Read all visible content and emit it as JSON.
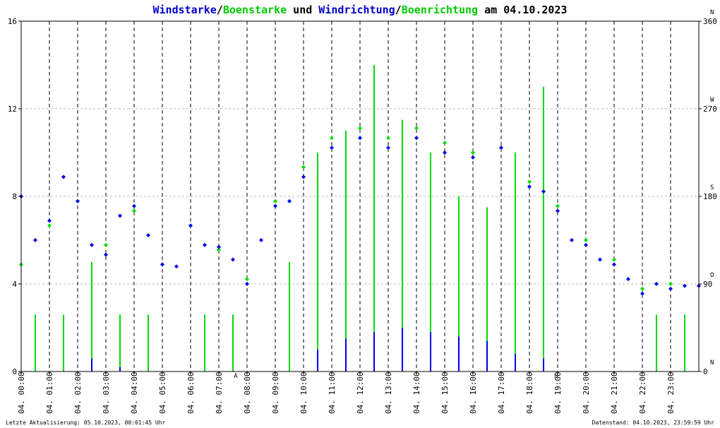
{
  "title": {
    "part1": "Windstarke",
    "sep1": "/",
    "part2": "Boenstarke",
    "mid": " und ",
    "part3": "Windrichtung",
    "sep2": "/",
    "part4": "Boenrichtung",
    "suffix": " am 04.10.2023"
  },
  "footer": {
    "left": "Letzte Aktualisierung: 05.10.2023, 00:01:45 Uhr",
    "right": "Datenstand: 04.10.2023, 23:59:59 Uhr"
  },
  "colors": {
    "wind": "#0000ee",
    "gust": "#00dd00",
    "marker": "#cc0000",
    "grid": "#bbbbbb",
    "hourline": "#000000"
  },
  "chart_data": {
    "type": "scatter",
    "x_unit": "hour of day",
    "xlim": [
      0,
      24
    ],
    "ylim_left": [
      0,
      16
    ],
    "ylim_right": [
      0,
      360
    ],
    "left_ticks": [
      "0",
      "4",
      "8",
      "12",
      "16"
    ],
    "right_ticks": [
      "0",
      "90",
      "180",
      "270",
      "360"
    ],
    "compass_labels": [
      "N",
      "O",
      "S",
      "W",
      "N"
    ],
    "x_tick_labels": [
      "04. 00:00",
      "04. 01:00",
      "04. 02:00",
      "04. 03:00",
      "04. 04:00",
      "04. 05:00",
      "04. 06:00",
      "04. 07:00",
      "04. 08:00",
      "04. 09:00",
      "04. 10:00",
      "04. 11:00",
      "04. 12:00",
      "04. 13:00",
      "04. 14:00",
      "04. 15:00",
      "04. 16:00",
      "04. 17:00",
      "04. 18:00",
      "04. 19:00",
      "04. 20:00",
      "04. 21:00",
      "04. 22:00",
      "04. 23:00"
    ],
    "sun_markers": [
      {
        "label": "A",
        "hour": 7.6
      },
      {
        "label": "U",
        "hour": 18.95
      }
    ],
    "series": [
      {
        "name": "Windstarke",
        "color": "#0000ee",
        "kind": "speed",
        "x": [
          0.0,
          1.0,
          2.0,
          3.0,
          4.0,
          5.0,
          6.0,
          7.0,
          8.0,
          9.0,
          10.0,
          11.0,
          12.0,
          13.0,
          14.0,
          15.0,
          16.0,
          17.0,
          18.0,
          19.0,
          20.0,
          21.0,
          22.0,
          23.0
        ],
        "y": [
          0.0,
          0.0,
          0.6,
          0.2,
          0.0,
          0.0,
          0.0,
          0.0,
          0.0,
          0.0,
          1.0,
          1.5,
          1.8,
          2.0,
          1.8,
          1.6,
          1.4,
          0.8,
          0.6,
          0.0,
          0.0,
          0.0,
          0.0,
          0.0
        ]
      },
      {
        "name": "Boenstarke",
        "color": "#00dd00",
        "kind": "speed",
        "x": [
          0.0,
          1.0,
          2.0,
          3.0,
          4.0,
          5.0,
          6.0,
          7.0,
          8.0,
          9.0,
          10.0,
          11.0,
          12.0,
          13.0,
          14.0,
          15.0,
          16.0,
          17.0,
          18.0,
          19.0,
          20.0,
          21.0,
          22.0,
          23.0
        ],
        "y": [
          2.6,
          2.6,
          5.0,
          2.6,
          2.6,
          0.0,
          2.6,
          2.6,
          0.0,
          5.0,
          10.0,
          11.0,
          14.0,
          11.5,
          10.0,
          8.0,
          7.5,
          10.0,
          13.0,
          0.0,
          0.0,
          0.0,
          2.6,
          2.6
        ]
      },
      {
        "name": "Windrichtung",
        "color": "#0000ee",
        "kind": "direction",
        "x": [
          0.0,
          0.5,
          1.0,
          1.5,
          2.0,
          2.5,
          3.0,
          3.5,
          4.0,
          4.5,
          5.0,
          5.5,
          6.0,
          6.5,
          7.0,
          7.5,
          8.0,
          8.5,
          9.0,
          9.5,
          10.0,
          11.0,
          12.0,
          13.0,
          14.0,
          15.0,
          16.0,
          17.0,
          18.0,
          18.5,
          19.0,
          19.5,
          20.0,
          20.5,
          21.0,
          21.5,
          22.0,
          22.5,
          23.0,
          23.5,
          24.0
        ],
        "y": [
          180,
          135,
          155,
          200,
          175,
          130,
          120,
          160,
          170,
          140,
          110,
          108,
          150,
          130,
          128,
          115,
          90,
          135,
          170,
          175,
          200,
          230,
          240,
          230,
          240,
          225,
          220,
          230,
          190,
          185,
          165,
          135,
          130,
          115,
          110,
          95,
          80,
          90,
          85,
          88,
          88
        ]
      },
      {
        "name": "Boenrichtung",
        "color": "#00dd00",
        "kind": "direction",
        "x": [
          0.0,
          1.0,
          2.0,
          3.0,
          4.0,
          5.0,
          6.0,
          7.0,
          8.0,
          9.0,
          10.0,
          11.0,
          12.0,
          13.0,
          14.0,
          15.0,
          16.0,
          17.0,
          18.0,
          19.0,
          20.0,
          21.0,
          22.0,
          23.0
        ],
        "y": [
          110,
          150,
          175,
          130,
          165,
          110,
          150,
          125,
          95,
          175,
          210,
          240,
          250,
          240,
          250,
          235,
          225,
          230,
          195,
          170,
          135,
          115,
          85,
          90
        ]
      }
    ]
  }
}
